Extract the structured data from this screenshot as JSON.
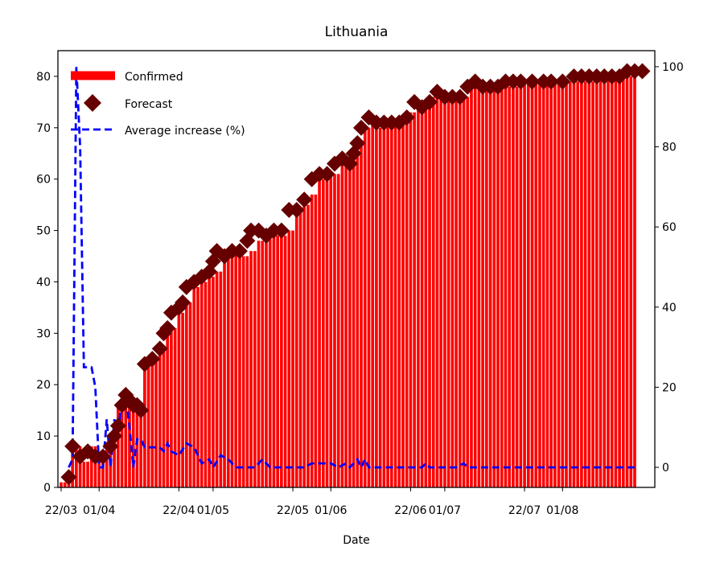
{
  "chart_data": {
    "type": "bar",
    "title": "Lithuania",
    "xlabel": "Date",
    "ylabel": "",
    "ylabel_right": "",
    "start_date": "2020-03-22",
    "end_date": "2020-08-20",
    "ylim": [
      0,
      85
    ],
    "ylim_right": [
      -5,
      104
    ],
    "yticks": [
      0,
      10,
      20,
      30,
      40,
      50,
      60,
      70,
      80
    ],
    "yticks_right": [
      0,
      20,
      40,
      60,
      80,
      100
    ],
    "xticks": [
      {
        "date": "2020-03-22",
        "label": "22/03"
      },
      {
        "date": "2020-04-01",
        "label": "01/04"
      },
      {
        "date": "2020-04-22",
        "label": "22/04"
      },
      {
        "date": "2020-05-01",
        "label": "01/05"
      },
      {
        "date": "2020-05-22",
        "label": "22/05"
      },
      {
        "date": "2020-06-01",
        "label": "01/06"
      },
      {
        "date": "2020-06-22",
        "label": "22/06"
      },
      {
        "date": "2020-07-01",
        "label": "01/07"
      },
      {
        "date": "2020-07-22",
        "label": "22/07"
      },
      {
        "date": "2020-08-01",
        "label": "01/08"
      }
    ],
    "legend": {
      "position": "top-left",
      "entries": [
        "Confirmed",
        "Forecast",
        "Average increase (%)"
      ]
    },
    "series": [
      {
        "name": "Confirmed",
        "kind": "bar",
        "color": "#ff0000",
        "axis": "left",
        "points": [
          [
            "2020-03-22",
            1
          ],
          [
            "2020-03-24",
            2
          ],
          [
            "2020-03-25",
            8
          ],
          [
            "2020-03-28",
            5
          ],
          [
            "2020-03-30",
            8
          ],
          [
            "2020-04-01",
            5
          ],
          [
            "2020-04-03",
            8
          ],
          [
            "2020-04-05",
            11
          ],
          [
            "2020-04-06",
            16
          ],
          [
            "2020-04-07",
            18
          ],
          [
            "2020-04-09",
            16
          ],
          [
            "2020-04-11",
            15
          ],
          [
            "2020-04-13",
            24
          ],
          [
            "2020-04-15",
            25
          ],
          [
            "2020-04-17",
            27
          ],
          [
            "2020-04-19",
            30
          ],
          [
            "2020-04-20",
            31
          ],
          [
            "2020-04-22",
            34
          ],
          [
            "2020-04-24",
            36
          ],
          [
            "2020-04-26",
            39
          ],
          [
            "2020-04-28",
            40
          ],
          [
            "2020-04-30",
            41
          ],
          [
            "2020-05-02",
            42
          ],
          [
            "2020-05-04",
            45
          ],
          [
            "2020-05-06",
            46
          ],
          [
            "2020-05-09",
            45
          ],
          [
            "2020-05-11",
            46
          ],
          [
            "2020-05-13",
            48
          ],
          [
            "2020-05-15",
            50
          ],
          [
            "2020-05-18",
            49
          ],
          [
            "2020-05-21",
            50
          ],
          [
            "2020-05-23",
            54
          ],
          [
            "2020-05-25",
            55
          ],
          [
            "2020-05-27",
            57
          ],
          [
            "2020-05-29",
            60
          ],
          [
            "2020-05-31",
            61
          ],
          [
            "2020-06-02",
            61
          ],
          [
            "2020-06-04",
            63
          ],
          [
            "2020-06-06",
            64
          ],
          [
            "2020-06-08",
            67
          ],
          [
            "2020-06-10",
            70
          ],
          [
            "2020-06-12",
            72
          ],
          [
            "2020-06-14",
            70
          ],
          [
            "2020-06-16",
            71
          ],
          [
            "2020-06-18",
            71
          ],
          [
            "2020-06-20",
            71
          ],
          [
            "2020-06-22",
            73
          ],
          [
            "2020-06-24",
            75
          ],
          [
            "2020-06-26",
            74
          ],
          [
            "2020-06-28",
            76
          ],
          [
            "2020-06-30",
            77
          ],
          [
            "2020-07-02",
            76
          ],
          [
            "2020-07-04",
            76
          ],
          [
            "2020-07-06",
            76
          ],
          [
            "2020-07-08",
            78
          ],
          [
            "2020-07-10",
            79
          ],
          [
            "2020-07-12",
            78
          ],
          [
            "2020-07-15",
            78
          ],
          [
            "2020-07-18",
            78
          ],
          [
            "2020-07-21",
            79
          ],
          [
            "2020-07-24",
            79
          ],
          [
            "2020-07-28",
            79
          ],
          [
            "2020-08-01",
            79
          ],
          [
            "2020-08-04",
            79
          ],
          [
            "2020-08-07",
            79
          ],
          [
            "2020-08-11",
            80
          ],
          [
            "2020-08-14",
            80
          ],
          [
            "2020-08-17",
            80
          ],
          [
            "2020-08-20",
            81
          ]
        ]
      },
      {
        "name": "Forecast",
        "kind": "scatter",
        "color": "#660000",
        "axis": "left",
        "points": [
          [
            "2020-03-24",
            2
          ],
          [
            "2020-03-25",
            8
          ],
          [
            "2020-03-27",
            6
          ],
          [
            "2020-03-29",
            7
          ],
          [
            "2020-03-31",
            6
          ],
          [
            "2020-04-02",
            6
          ],
          [
            "2020-04-04",
            8
          ],
          [
            "2020-04-05",
            10
          ],
          [
            "2020-04-06",
            12
          ],
          [
            "2020-04-07",
            16
          ],
          [
            "2020-04-08",
            18
          ],
          [
            "2020-04-09",
            17
          ],
          [
            "2020-04-10",
            16
          ],
          [
            "2020-04-11",
            16
          ],
          [
            "2020-04-12",
            15
          ],
          [
            "2020-04-13",
            24
          ],
          [
            "2020-04-15",
            25
          ],
          [
            "2020-04-17",
            27
          ],
          [
            "2020-04-18",
            30
          ],
          [
            "2020-04-19",
            31
          ],
          [
            "2020-04-20",
            34
          ],
          [
            "2020-04-22",
            35
          ],
          [
            "2020-04-23",
            36
          ],
          [
            "2020-04-24",
            39
          ],
          [
            "2020-04-26",
            40
          ],
          [
            "2020-04-28",
            41
          ],
          [
            "2020-04-30",
            42
          ],
          [
            "2020-05-01",
            44
          ],
          [
            "2020-05-02",
            46
          ],
          [
            "2020-05-04",
            45
          ],
          [
            "2020-05-06",
            46
          ],
          [
            "2020-05-08",
            46
          ],
          [
            "2020-05-10",
            48
          ],
          [
            "2020-05-11",
            50
          ],
          [
            "2020-05-13",
            50
          ],
          [
            "2020-05-15",
            49
          ],
          [
            "2020-05-17",
            50
          ],
          [
            "2020-05-19",
            50
          ],
          [
            "2020-05-21",
            54
          ],
          [
            "2020-05-23",
            54
          ],
          [
            "2020-05-25",
            56
          ],
          [
            "2020-05-27",
            60
          ],
          [
            "2020-05-29",
            61
          ],
          [
            "2020-05-31",
            61
          ],
          [
            "2020-06-02",
            63
          ],
          [
            "2020-06-04",
            64
          ],
          [
            "2020-06-06",
            63
          ],
          [
            "2020-06-07",
            65
          ],
          [
            "2020-06-08",
            67
          ],
          [
            "2020-06-09",
            70
          ],
          [
            "2020-06-11",
            72
          ],
          [
            "2020-06-13",
            71
          ],
          [
            "2020-06-15",
            71
          ],
          [
            "2020-06-17",
            71
          ],
          [
            "2020-06-19",
            71
          ],
          [
            "2020-06-21",
            72
          ],
          [
            "2020-06-23",
            75
          ],
          [
            "2020-06-25",
            74
          ],
          [
            "2020-06-27",
            75
          ],
          [
            "2020-06-29",
            77
          ],
          [
            "2020-07-01",
            76
          ],
          [
            "2020-07-03",
            76
          ],
          [
            "2020-07-05",
            76
          ],
          [
            "2020-07-07",
            78
          ],
          [
            "2020-07-09",
            79
          ],
          [
            "2020-07-11",
            78
          ],
          [
            "2020-07-13",
            78
          ],
          [
            "2020-07-15",
            78
          ],
          [
            "2020-07-17",
            79
          ],
          [
            "2020-07-19",
            79
          ],
          [
            "2020-07-21",
            79
          ],
          [
            "2020-07-24",
            79
          ],
          [
            "2020-07-27",
            79
          ],
          [
            "2020-07-29",
            79
          ],
          [
            "2020-08-01",
            79
          ],
          [
            "2020-08-04",
            80
          ],
          [
            "2020-08-06",
            80
          ],
          [
            "2020-08-08",
            80
          ],
          [
            "2020-08-10",
            80
          ],
          [
            "2020-08-12",
            80
          ],
          [
            "2020-08-14",
            80
          ],
          [
            "2020-08-16",
            80
          ],
          [
            "2020-08-18",
            81
          ],
          [
            "2020-08-20",
            81
          ],
          [
            "2020-08-22",
            81
          ]
        ]
      },
      {
        "name": "Average increase (%)",
        "kind": "line",
        "color": "#0000ff",
        "axis": "right",
        "points": [
          [
            "2020-03-24",
            0
          ],
          [
            "2020-03-25",
            2
          ],
          [
            "2020-03-26",
            100
          ],
          [
            "2020-03-27",
            80
          ],
          [
            "2020-03-28",
            25
          ],
          [
            "2020-03-29",
            25
          ],
          [
            "2020-03-30",
            25
          ],
          [
            "2020-03-31",
            20
          ],
          [
            "2020-04-01",
            0
          ],
          [
            "2020-04-02",
            0
          ],
          [
            "2020-04-03",
            12
          ],
          [
            "2020-04-04",
            0
          ],
          [
            "2020-04-05",
            12
          ],
          [
            "2020-04-06",
            8
          ],
          [
            "2020-04-07",
            18
          ],
          [
            "2020-04-08",
            18
          ],
          [
            "2020-04-09",
            10
          ],
          [
            "2020-04-10",
            0
          ],
          [
            "2020-04-11",
            7
          ],
          [
            "2020-04-12",
            7
          ],
          [
            "2020-04-13",
            5
          ],
          [
            "2020-04-15",
            5
          ],
          [
            "2020-04-17",
            5
          ],
          [
            "2020-04-18",
            4
          ],
          [
            "2020-04-19",
            6
          ],
          [
            "2020-04-20",
            4
          ],
          [
            "2020-04-22",
            3
          ],
          [
            "2020-04-24",
            6
          ],
          [
            "2020-04-26",
            5
          ],
          [
            "2020-04-28",
            1
          ],
          [
            "2020-04-30",
            2
          ],
          [
            "2020-05-01",
            0
          ],
          [
            "2020-05-03",
            3
          ],
          [
            "2020-05-05",
            2
          ],
          [
            "2020-05-07",
            0
          ],
          [
            "2020-05-12",
            0
          ],
          [
            "2020-05-14",
            2
          ],
          [
            "2020-05-16",
            0
          ],
          [
            "2020-05-25",
            0
          ],
          [
            "2020-05-27",
            1
          ],
          [
            "2020-06-01",
            1
          ],
          [
            "2020-06-03",
            0
          ],
          [
            "2020-06-05",
            1
          ],
          [
            "2020-06-06",
            0
          ],
          [
            "2020-06-08",
            2
          ],
          [
            "2020-06-09",
            0
          ],
          [
            "2020-06-10",
            2
          ],
          [
            "2020-06-11",
            0
          ],
          [
            "2020-06-25",
            0
          ],
          [
            "2020-06-26",
            1
          ],
          [
            "2020-06-27",
            0
          ],
          [
            "2020-07-04",
            0
          ],
          [
            "2020-07-06",
            1
          ],
          [
            "2020-07-07",
            0
          ],
          [
            "2020-08-20",
            0
          ]
        ]
      }
    ]
  }
}
